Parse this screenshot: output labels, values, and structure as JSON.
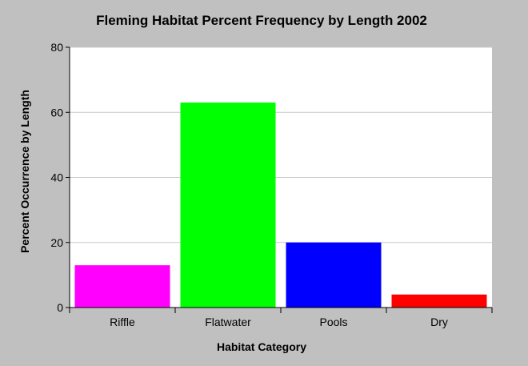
{
  "chart_data": {
    "type": "bar",
    "title": "Fleming Habitat Percent Frequency by Length 2002",
    "xlabel": "Habitat Category",
    "ylabel": "Percent Occurrence by Length",
    "categories": [
      "Riffle",
      "Flatwater",
      "Pools",
      "Dry"
    ],
    "values": [
      13,
      63,
      20,
      4
    ],
    "colors": [
      "#ff00ff",
      "#00ff00",
      "#0000ff",
      "#ff0000"
    ],
    "ylim": [
      0,
      80
    ],
    "yticks": [
      0,
      20,
      40,
      60,
      80
    ],
    "ytick_labels": [
      "0",
      "20",
      "40",
      "60",
      "80"
    ],
    "grid": true,
    "legend": "none"
  }
}
